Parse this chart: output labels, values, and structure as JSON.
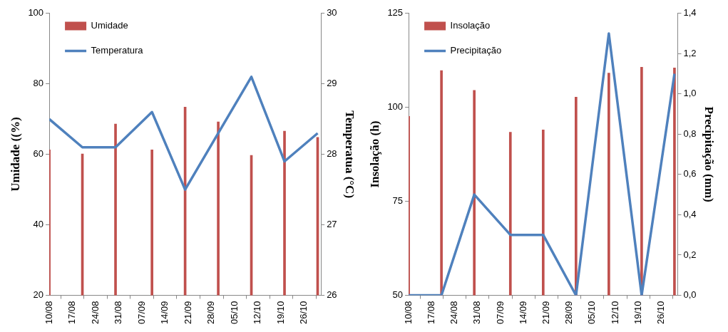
{
  "chart_data": [
    {
      "type": "bar",
      "ylabel": "Umidade ((%)",
      "y2label": "Temperatua (°C)",
      "x": [
        "--08-10",
        "--08-20",
        "--08-30",
        "--09-10",
        "--09-20",
        "--09-30",
        "--10-10",
        "--10-20",
        "--10-30"
      ],
      "series": [
        {
          "name": "Umidade",
          "color": "#c0504d",
          "values": [
            61.3,
            60.1,
            68.6,
            61.3,
            73.4,
            69.2,
            59.7,
            66.6,
            64.8
          ]
        },
        {
          "name": "Temperatura",
          "type": "line",
          "axis": "y2",
          "color": "#4f81bd",
          "values": [
            28.5,
            28.1,
            28.1,
            28.6,
            27.5,
            28.3,
            29.1,
            27.9,
            28.3
          ]
        }
      ],
      "xlim": [
        "--08-10",
        "--10-31"
      ],
      "xticks": [
        {
          "value": "--08-10",
          "label": "10/08"
        },
        {
          "value": "--08-17",
          "label": "17/08"
        },
        {
          "value": "--08-24",
          "label": "24/08"
        },
        {
          "value": "--08-31",
          "label": "31/08"
        },
        {
          "value": "--09-07",
          "label": "07/09"
        },
        {
          "value": "--09-14",
          "label": "14/09"
        },
        {
          "value": "--09-21",
          "label": "21/09"
        },
        {
          "value": "--09-28",
          "label": "28/09"
        },
        {
          "value": "--10-05",
          "label": "05/10"
        },
        {
          "value": "--10-12",
          "label": "12/10"
        },
        {
          "value": "--10-19",
          "label": "19/10"
        },
        {
          "value": "--10-26",
          "label": "26/10"
        }
      ],
      "ylim": [
        20,
        100
      ],
      "yticks": [
        20,
        40,
        60,
        80,
        100
      ],
      "y2lim": [
        26,
        30
      ],
      "y2ticks": [
        26,
        27,
        28,
        29,
        30
      ],
      "grid": false,
      "legend": "top left",
      "marker": "none",
      "line_style": "solid"
    },
    {
      "type": "bar",
      "ylabel": "Insolação (h)",
      "y2label": "Precipitação (mm)",
      "x": [
        "--08-10",
        "--08-20",
        "--08-30",
        "--09-10",
        "--09-20",
        "--09-30",
        "--10-10",
        "--10-20",
        "--10-30"
      ],
      "series": [
        {
          "name": "Insolação",
          "color": "#c0504d",
          "values": [
            97.6,
            109.8,
            104.5,
            93.4,
            94.0,
            102.7,
            109.1,
            110.7,
            110.5
          ]
        },
        {
          "name": "Precipitação",
          "type": "line",
          "axis": "y2",
          "color": "#4f81bd",
          "values": [
            0,
            0,
            0.5,
            0.3,
            0.3,
            0,
            1.3,
            0,
            1.1
          ]
        }
      ],
      "xlim": [
        "--08-10",
        "--10-31"
      ],
      "xticks": [
        {
          "value": "--08-10",
          "label": "10/08"
        },
        {
          "value": "--08-17",
          "label": "17/08"
        },
        {
          "value": "--08-24",
          "label": "24/08"
        },
        {
          "value": "--08-31",
          "label": "31/08"
        },
        {
          "value": "--09-07",
          "label": "07/09"
        },
        {
          "value": "--09-14",
          "label": "14/09"
        },
        {
          "value": "--09-21",
          "label": "21/09"
        },
        {
          "value": "--09-28",
          "label": "28/09"
        },
        {
          "value": "--10-05",
          "label": "05/10"
        },
        {
          "value": "--10-12",
          "label": "12/10"
        },
        {
          "value": "--10-19",
          "label": "19/10"
        },
        {
          "value": "--10-26",
          "label": "26/10"
        }
      ],
      "ylim": [
        50,
        125
      ],
      "yticks": [
        50,
        75,
        100,
        125
      ],
      "y2lim": [
        0,
        1.4
      ],
      "y2ticks": [
        {
          "value": 0,
          "label": "0,0"
        },
        {
          "value": 0.2,
          "label": "0,2"
        },
        {
          "value": 0.4,
          "label": "0,4"
        },
        {
          "value": 0.6,
          "label": "0,6"
        },
        {
          "value": 0.8,
          "label": "0,8"
        },
        {
          "value": 1.0,
          "label": "1,0"
        },
        {
          "value": 1.2,
          "label": "1,2"
        },
        {
          "value": 1.4,
          "label": "1,4"
        }
      ],
      "grid": false,
      "legend": "top left",
      "marker": "none",
      "line_style": "solid"
    }
  ]
}
